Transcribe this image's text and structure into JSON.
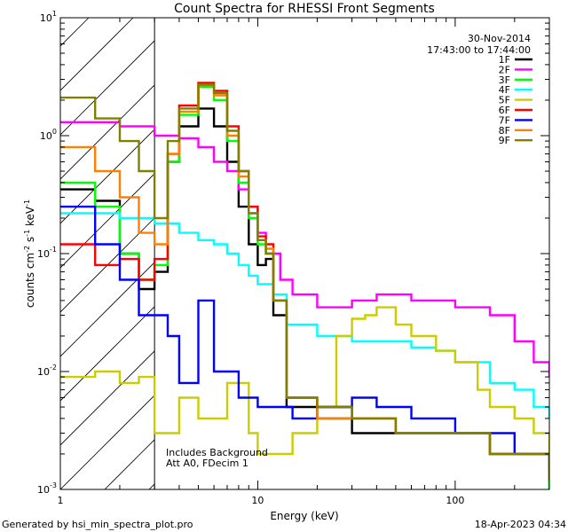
{
  "chart_data": {
    "type": "line",
    "title": "Count Spectra for RHESSI Front Segments",
    "xlabel": "Energy (keV)",
    "ylabel": "counts cm-2 s-1 keV-1",
    "ylabel_parts": {
      "base": "counts cm",
      "sup1": "-2",
      "mid": " s",
      "sup2": "-1",
      "tail": " keV",
      "sup3": "-1"
    },
    "xscale": "log",
    "yscale": "log",
    "xlim": [
      1,
      300
    ],
    "ylim": [
      0.001,
      10
    ],
    "x_ticks": [
      {
        "v": 1,
        "label": "1"
      },
      {
        "v": 10,
        "label": "10"
      },
      {
        "v": 100,
        "label": "100"
      }
    ],
    "y_ticks": [
      {
        "v": 10,
        "base": "10",
        "exp": "1"
      },
      {
        "v": 1,
        "base": "10",
        "exp": "0"
      },
      {
        "v": 0.1,
        "base": "10",
        "exp": "-1"
      },
      {
        "v": 0.01,
        "base": "10",
        "exp": "-2"
      },
      {
        "v": 0.001,
        "base": "10",
        "exp": "-3"
      }
    ],
    "hatch_region": [
      1,
      3
    ],
    "date": "30-Nov-2014",
    "time_range": "17:43:00 to 17:44:00",
    "annotations": [
      "Includes Background",
      "Att A0, FDecim 1"
    ],
    "legend_position": "top-right",
    "series": [
      {
        "name": "1F",
        "color": "#000000",
        "points": [
          [
            1,
            0.35
          ],
          [
            1.5,
            0.28
          ],
          [
            2,
            0.1
          ],
          [
            2.5,
            0.05
          ],
          [
            3,
            0.07
          ],
          [
            3.5,
            0.6
          ],
          [
            4,
            1.2
          ],
          [
            5,
            1.7
          ],
          [
            6,
            1.2
          ],
          [
            7,
            0.6
          ],
          [
            8,
            0.25
          ],
          [
            9,
            0.12
          ],
          [
            10,
            0.08
          ],
          [
            11,
            0.09
          ],
          [
            12,
            0.03
          ],
          [
            14,
            0.005
          ],
          [
            20,
            0.004
          ],
          [
            30,
            0.003
          ],
          [
            50,
            0.003
          ],
          [
            80,
            0.003
          ],
          [
            150,
            0.002
          ],
          [
            300,
            0.001
          ]
        ]
      },
      {
        "name": "2F",
        "color": "#ff00ff",
        "points": [
          [
            1,
            1.3
          ],
          [
            2,
            1.2
          ],
          [
            3,
            1.0
          ],
          [
            4,
            0.95
          ],
          [
            5,
            0.8
          ],
          [
            6,
            0.6
          ],
          [
            7,
            0.5
          ],
          [
            8,
            0.35
          ],
          [
            9,
            0.25
          ],
          [
            10,
            0.15
          ],
          [
            11,
            0.1
          ],
          [
            13,
            0.06
          ],
          [
            15,
            0.045
          ],
          [
            20,
            0.035
          ],
          [
            30,
            0.04
          ],
          [
            40,
            0.045
          ],
          [
            60,
            0.04
          ],
          [
            100,
            0.035
          ],
          [
            150,
            0.03
          ],
          [
            200,
            0.018
          ],
          [
            250,
            0.012
          ],
          [
            300,
            0.009
          ]
        ]
      },
      {
        "name": "3F",
        "color": "#00ff00",
        "points": [
          [
            1,
            0.4
          ],
          [
            1.5,
            0.25
          ],
          [
            2,
            0.1
          ],
          [
            2.5,
            0.06
          ],
          [
            3,
            0.08
          ],
          [
            3.5,
            0.6
          ],
          [
            4,
            1.5
          ],
          [
            5,
            2.6
          ],
          [
            6,
            2.0
          ],
          [
            7,
            0.9
          ],
          [
            8,
            0.4
          ],
          [
            9,
            0.2
          ],
          [
            10,
            0.12
          ],
          [
            11,
            0.1
          ],
          [
            12,
            0.04
          ],
          [
            14,
            0.006
          ],
          [
            20,
            0.005
          ],
          [
            30,
            0.004
          ],
          [
            50,
            0.003
          ],
          [
            80,
            0.003
          ],
          [
            150,
            0.002
          ],
          [
            300,
            0.001
          ]
        ]
      },
      {
        "name": "4F",
        "color": "#00ffff",
        "points": [
          [
            1,
            0.22
          ],
          [
            2,
            0.2
          ],
          [
            3,
            0.18
          ],
          [
            4,
            0.15
          ],
          [
            5,
            0.13
          ],
          [
            6,
            0.12
          ],
          [
            7,
            0.1
          ],
          [
            8,
            0.08
          ],
          [
            9,
            0.065
          ],
          [
            10,
            0.055
          ],
          [
            12,
            0.045
          ],
          [
            14,
            0.025
          ],
          [
            20,
            0.02
          ],
          [
            30,
            0.018
          ],
          [
            40,
            0.018
          ],
          [
            60,
            0.016
          ],
          [
            80,
            0.015
          ],
          [
            100,
            0.012
          ],
          [
            150,
            0.008
          ],
          [
            200,
            0.007
          ],
          [
            250,
            0.005
          ],
          [
            300,
            0.004
          ]
        ]
      },
      {
        "name": "5F",
        "color": "#cccc00",
        "points": [
          [
            1,
            0.009
          ],
          [
            1.5,
            0.01
          ],
          [
            2,
            0.008
          ],
          [
            2.5,
            0.009
          ],
          [
            3,
            0.003
          ],
          [
            4,
            0.006
          ],
          [
            5,
            0.004
          ],
          [
            7,
            0.008
          ],
          [
            9,
            0.003
          ],
          [
            10,
            0.002
          ],
          [
            15,
            0.003
          ],
          [
            20,
            0.005
          ],
          [
            25,
            0.02
          ],
          [
            30,
            0.028
          ],
          [
            35,
            0.03
          ],
          [
            40,
            0.035
          ],
          [
            50,
            0.025
          ],
          [
            60,
            0.02
          ],
          [
            80,
            0.015
          ],
          [
            100,
            0.012
          ],
          [
            130,
            0.007
          ],
          [
            150,
            0.005
          ],
          [
            200,
            0.004
          ],
          [
            250,
            0.003
          ],
          [
            300,
            0.002
          ]
        ]
      },
      {
        "name": "6F",
        "color": "#ff0000",
        "points": [
          [
            1,
            0.12
          ],
          [
            1.5,
            0.08
          ],
          [
            2,
            0.09
          ],
          [
            2.5,
            0.06
          ],
          [
            3,
            0.09
          ],
          [
            3.5,
            0.7
          ],
          [
            4,
            1.8
          ],
          [
            5,
            2.8
          ],
          [
            6,
            2.4
          ],
          [
            7,
            1.2
          ],
          [
            8,
            0.5
          ],
          [
            9,
            0.25
          ],
          [
            10,
            0.14
          ],
          [
            11,
            0.12
          ],
          [
            12,
            0.04
          ],
          [
            14,
            0.006
          ],
          [
            20,
            0.005
          ],
          [
            30,
            0.004
          ],
          [
            50,
            0.003
          ],
          [
            80,
            0.003
          ],
          [
            150,
            0.002
          ],
          [
            300,
            0.0012
          ]
        ]
      },
      {
        "name": "7F",
        "color": "#0000ff",
        "points": [
          [
            1,
            0.25
          ],
          [
            1.5,
            0.12
          ],
          [
            2,
            0.06
          ],
          [
            2.5,
            0.03
          ],
          [
            3,
            0.03
          ],
          [
            3.5,
            0.02
          ],
          [
            4,
            0.008
          ],
          [
            5,
            0.04
          ],
          [
            6,
            0.01
          ],
          [
            8,
            0.006
          ],
          [
            10,
            0.005
          ],
          [
            15,
            0.004
          ],
          [
            20,
            0.005
          ],
          [
            30,
            0.006
          ],
          [
            40,
            0.005
          ],
          [
            60,
            0.004
          ],
          [
            80,
            0.004
          ],
          [
            100,
            0.003
          ],
          [
            150,
            0.003
          ],
          [
            200,
            0.002
          ],
          [
            300,
            0.0015
          ]
        ]
      },
      {
        "name": "8F",
        "color": "#ff8000",
        "points": [
          [
            1,
            0.8
          ],
          [
            1.5,
            0.5
          ],
          [
            2,
            0.3
          ],
          [
            2.5,
            0.15
          ],
          [
            3,
            0.12
          ],
          [
            3.5,
            0.7
          ],
          [
            4,
            1.6
          ],
          [
            5,
            2.7
          ],
          [
            6,
            2.2
          ],
          [
            7,
            1.0
          ],
          [
            8,
            0.45
          ],
          [
            9,
            0.22
          ],
          [
            10,
            0.13
          ],
          [
            11,
            0.11
          ],
          [
            12,
            0.04
          ],
          [
            14,
            0.006
          ],
          [
            20,
            0.004
          ],
          [
            30,
            0.004
          ],
          [
            50,
            0.003
          ],
          [
            80,
            0.003
          ],
          [
            150,
            0.002
          ],
          [
            300,
            0.0012
          ]
        ]
      },
      {
        "name": "9F",
        "color": "#808000",
        "points": [
          [
            1,
            2.1
          ],
          [
            1.5,
            1.4
          ],
          [
            2,
            0.9
          ],
          [
            2.5,
            0.5
          ],
          [
            3,
            0.2
          ],
          [
            3.5,
            0.9
          ],
          [
            4,
            1.7
          ],
          [
            5,
            2.7
          ],
          [
            6,
            2.3
          ],
          [
            7,
            1.1
          ],
          [
            8,
            0.5
          ],
          [
            9,
            0.22
          ],
          [
            10,
            0.13
          ],
          [
            11,
            0.1
          ],
          [
            12,
            0.04
          ],
          [
            14,
            0.006
          ],
          [
            20,
            0.005
          ],
          [
            30,
            0.004
          ],
          [
            50,
            0.003
          ],
          [
            80,
            0.003
          ],
          [
            150,
            0.002
          ],
          [
            300,
            0.0012
          ]
        ]
      }
    ]
  },
  "footer": {
    "generated_by": "Generated by hsi_min_spectra_plot.pro",
    "timestamp": "18-Apr-2023 04:34"
  }
}
